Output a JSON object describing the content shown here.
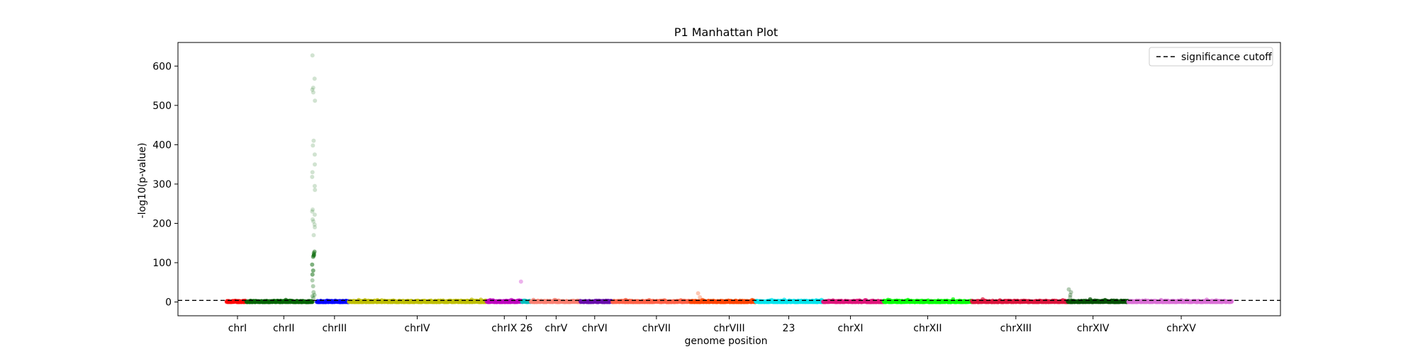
{
  "chart_data": {
    "type": "scatter",
    "title": "P1 Manhattan Plot",
    "xlabel": "genome position",
    "ylabel": "-log10(p-value)",
    "ylim": [
      -35,
      660
    ],
    "yticks": [
      0,
      100,
      200,
      300,
      400,
      500,
      600
    ],
    "grid": false,
    "legend": {
      "position": "top-right",
      "entries": [
        "significance cutoff"
      ]
    },
    "threshold": {
      "value": 4,
      "label": "significance cutoff",
      "style": "dashed",
      "color": "#000000"
    },
    "x_range": [
      0,
      100
    ],
    "chromosomes": [
      {
        "label": "chrI",
        "color": "#ff0000",
        "start": 4.4,
        "end": 6.2,
        "tick": 5.4
      },
      {
        "label": "chrII",
        "color": "#006400",
        "start": 6.2,
        "end": 12.2,
        "tick": 9.6
      },
      {
        "label": "chrIII",
        "color": "#0000ff",
        "start": 12.6,
        "end": 15.5,
        "tick": 14.2
      },
      {
        "label": "chrIV",
        "color": "#bfbf00",
        "start": 15.5,
        "end": 28.0,
        "tick": 21.7
      },
      {
        "label": "chrIX",
        "color": "#bf00bf",
        "start": 28.0,
        "end": 31.2,
        "tick": 29.6
      },
      {
        "label": "26",
        "color": "#00bfbf",
        "start": 31.2,
        "end": 32.0,
        "tick": 31.6
      },
      {
        "label": "chrV",
        "color": "#fa8072",
        "start": 32.0,
        "end": 36.5,
        "tick": 34.3
      },
      {
        "label": "chrVI",
        "color": "#6a0dad",
        "start": 36.5,
        "end": 39.4,
        "tick": 37.8
      },
      {
        "label": "chrVII",
        "color": "#ff6347",
        "start": 39.4,
        "end": 46.5,
        "tick": 43.4
      },
      {
        "label": "chrVIII",
        "color": "#ff4500",
        "start": 46.5,
        "end": 52.4,
        "tick": 50.0
      },
      {
        "label": "23",
        "color": "#00e5ee",
        "start": 52.4,
        "end": 58.5,
        "tick": 55.4
      },
      {
        "label": "chrXI",
        "color": "#e0157a",
        "start": 58.5,
        "end": 64.0,
        "tick": 61.0
      },
      {
        "label": "chrXII",
        "color": "#00ff00",
        "start": 64.0,
        "end": 72.0,
        "tick": 68.0
      },
      {
        "label": "chrXIII",
        "color": "#dc143c",
        "start": 72.0,
        "end": 80.7,
        "tick": 76.0
      },
      {
        "label": "chrXIV",
        "color": "#005000",
        "start": 80.7,
        "end": 86.2,
        "tick": 83.0
      },
      {
        "label": "chrXV",
        "color": "#da70d6",
        "start": 86.2,
        "end": 95.6,
        "tick": 91.0
      }
    ],
    "peaks": [
      {
        "chromosome": "chrII",
        "x": 12.3,
        "values": [
          627,
          568,
          545,
          540,
          533,
          512,
          410,
          398,
          375,
          350,
          330,
          318,
          295,
          285,
          235,
          230,
          222,
          210,
          205,
          197,
          190,
          170,
          128,
          124,
          120,
          118,
          115,
          95,
          80,
          70,
          55,
          40,
          25,
          18,
          15,
          10
        ]
      },
      {
        "chromosome": "chrIX",
        "x": 31.2,
        "values": [
          52
        ]
      },
      {
        "chromosome": "chrVIII",
        "x": 47.3,
        "values": [
          22,
          12
        ]
      },
      {
        "chromosome": "chrXIV",
        "x": 80.9,
        "values": [
          32,
          25,
          18,
          12
        ]
      }
    ]
  }
}
